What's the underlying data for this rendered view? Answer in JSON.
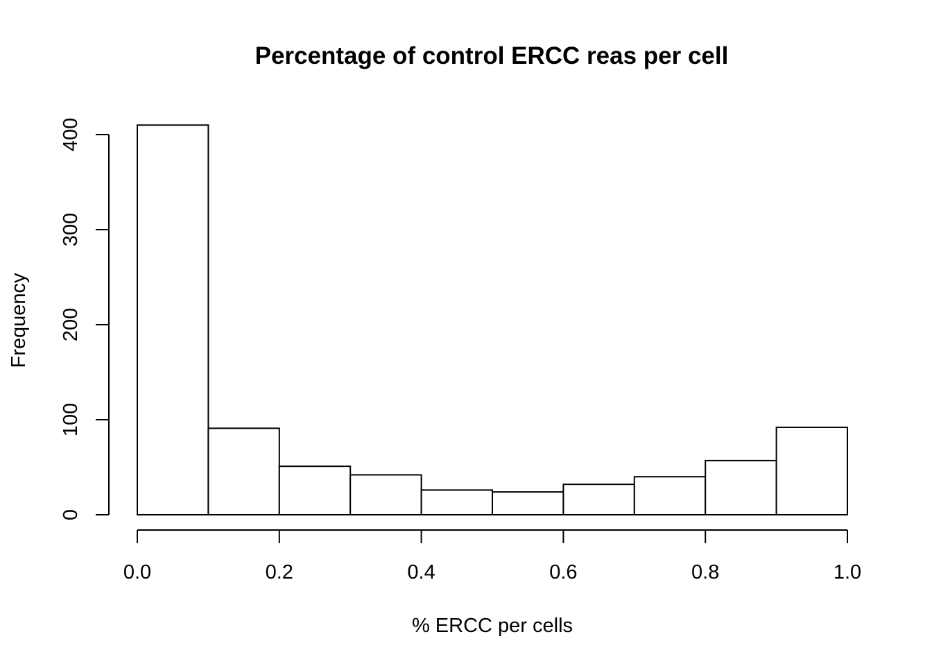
{
  "chart_data": {
    "type": "bar",
    "title": "Percentage of control ERCC reas per cell",
    "xlabel": "% ERCC per cells",
    "ylabel": "Frequency",
    "bin_edges": [
      0.0,
      0.1,
      0.2,
      0.3,
      0.4,
      0.5,
      0.6,
      0.7,
      0.8,
      0.9,
      1.0
    ],
    "values": [
      410,
      91,
      51,
      42,
      26,
      24,
      32,
      40,
      57,
      92
    ],
    "xlim": [
      0,
      1
    ],
    "ylim": [
      0,
      410
    ],
    "x_ticks": [
      "0.0",
      "0.2",
      "0.4",
      "0.6",
      "0.8",
      "1.0"
    ],
    "y_ticks": [
      "0",
      "100",
      "200",
      "300",
      "400"
    ],
    "grid": false,
    "colors": {
      "bar_fill": "#ffffff",
      "bar_stroke": "#000000"
    }
  }
}
